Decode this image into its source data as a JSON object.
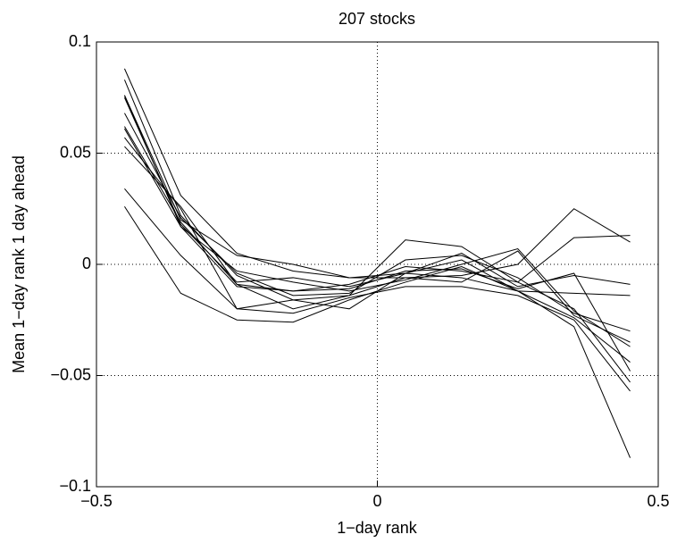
{
  "chart_data": {
    "type": "line",
    "title": "207 stocks",
    "x_label": "1−day rank",
    "y_label": "Mean 1−day rank 1 day ahead",
    "color": "#000000",
    "grid": true,
    "x": [
      -0.45,
      -0.35,
      -0.25,
      -0.15,
      -0.05,
      0.05,
      0.15,
      0.25,
      0.35,
      0.45
    ],
    "xlim": [
      -0.5,
      0.5
    ],
    "xticks": [
      {
        "value": -0.5,
        "label": "−0.5"
      },
      0,
      0.5
    ],
    "ylim": [
      -0.1,
      0.1
    ],
    "yticks": [
      {
        "value": -0.1,
        "label": "−0.1"
      },
      {
        "value": -0.05,
        "label": "−0.05"
      },
      0,
      0.05,
      0.1
    ],
    "series": [
      {
        "values": [
          0.088,
          0.031,
          0.005,
          -0.003,
          -0.006,
          -0.006,
          -0.005,
          0.0,
          0.025,
          0.01
        ]
      },
      {
        "values": [
          0.083,
          0.022,
          -0.005,
          -0.016,
          -0.014,
          0.011,
          0.008,
          -0.008,
          0.012,
          0.013
        ]
      },
      {
        "values": [
          0.076,
          0.02,
          0.004,
          0.0,
          -0.006,
          -0.004,
          0.005,
          -0.01,
          -0.005,
          -0.009
        ]
      },
      {
        "values": [
          0.075,
          0.018,
          -0.008,
          -0.006,
          -0.01,
          -0.004,
          0.002,
          -0.012,
          -0.013,
          -0.014
        ]
      },
      {
        "values": [
          0.068,
          0.021,
          -0.004,
          -0.014,
          -0.013,
          0.002,
          0.004,
          -0.006,
          -0.022,
          -0.03
        ]
      },
      {
        "values": [
          0.062,
          0.019,
          -0.009,
          -0.02,
          -0.014,
          -0.006,
          -0.008,
          0.006,
          -0.023,
          -0.035
        ]
      },
      {
        "values": [
          0.061,
          0.017,
          -0.003,
          -0.008,
          -0.012,
          -0.007,
          0.0,
          0.007,
          -0.021,
          -0.037
        ]
      },
      {
        "values": [
          0.057,
          0.025,
          -0.02,
          -0.016,
          -0.02,
          -0.004,
          -0.006,
          -0.012,
          -0.024,
          -0.044
        ]
      },
      {
        "values": [
          0.053,
          0.026,
          -0.009,
          -0.012,
          -0.009,
          -0.001,
          -0.003,
          -0.008,
          -0.02,
          -0.053
        ]
      },
      {
        "values": [
          0.034,
          0.004,
          -0.02,
          -0.022,
          -0.015,
          -0.01,
          -0.01,
          -0.014,
          -0.025,
          -0.057
        ]
      },
      {
        "values": [
          0.026,
          -0.013,
          -0.025,
          -0.026,
          -0.016,
          -0.008,
          -0.001,
          -0.012,
          -0.028,
          -0.087
        ]
      },
      {
        "values": [
          0.076,
          0.017,
          -0.01,
          -0.012,
          -0.011,
          -0.003,
          -0.002,
          -0.011,
          -0.004,
          -0.048
        ]
      }
    ]
  }
}
